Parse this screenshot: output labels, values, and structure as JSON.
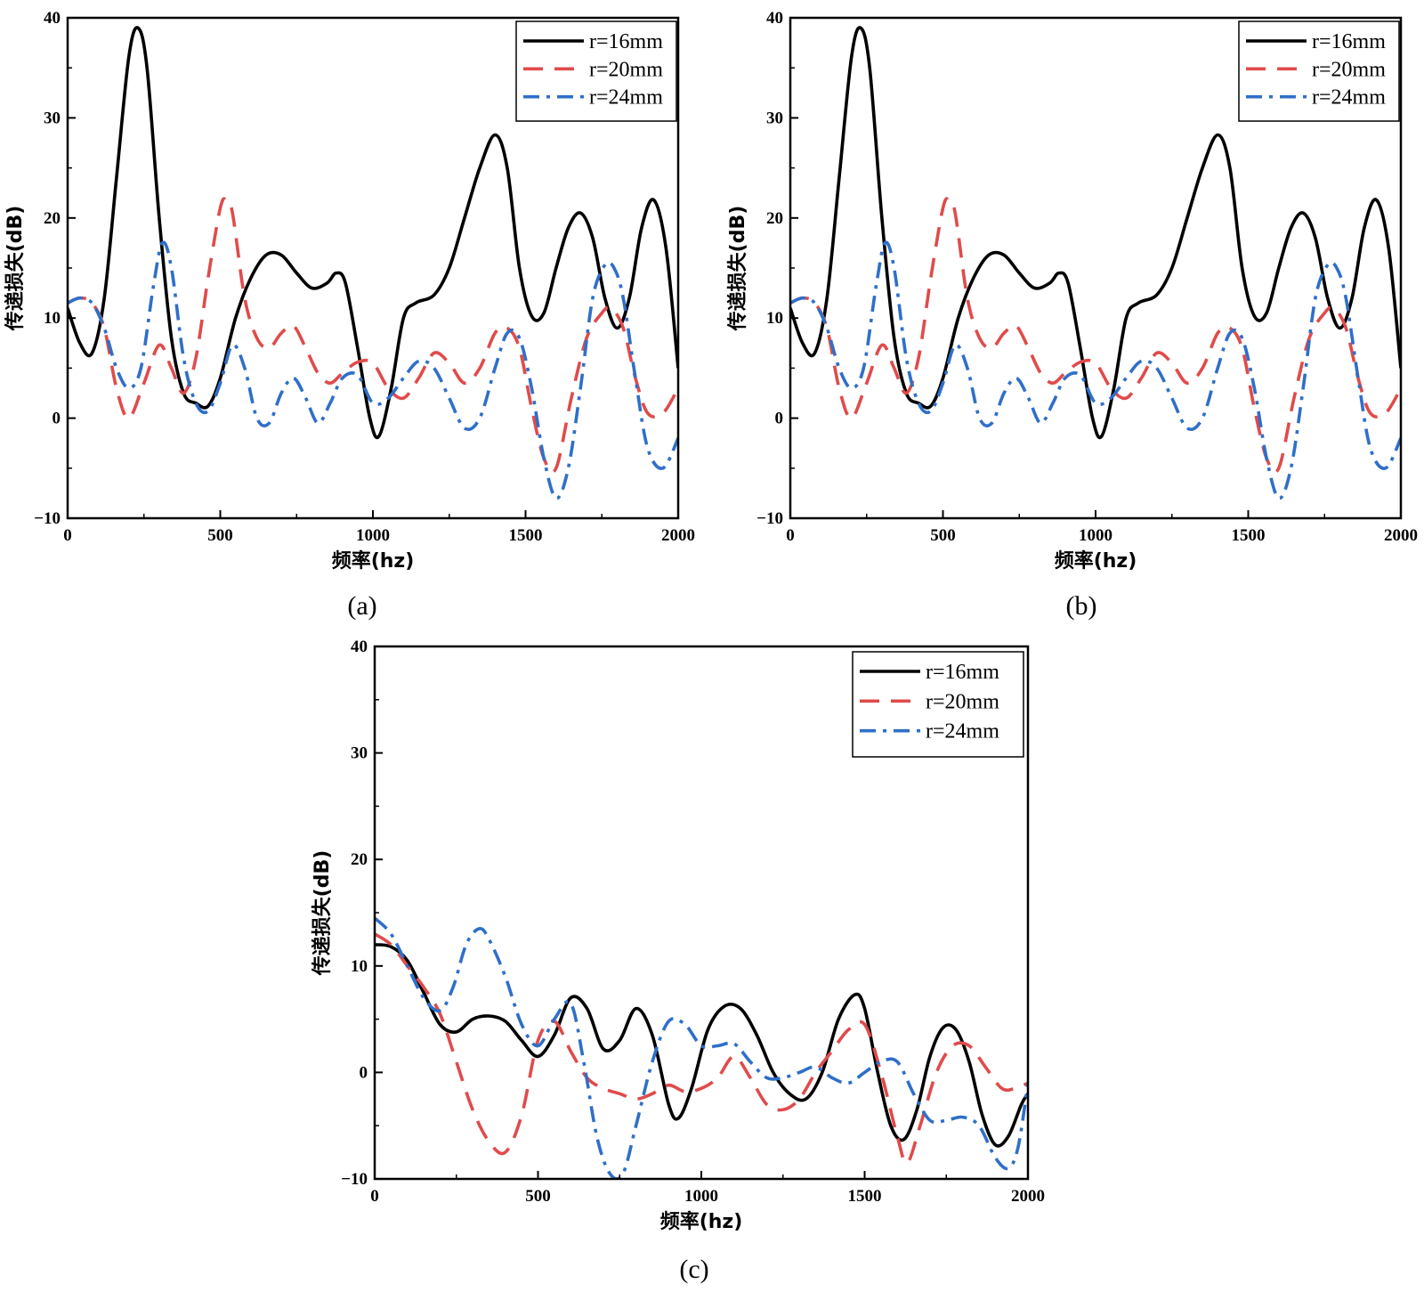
{
  "figure": {
    "panels": [
      {
        "label": "(a)",
        "legend": [
          "r=16mm",
          "r=20mm",
          "r=24mm"
        ]
      },
      {
        "label": "(b)",
        "legend": [
          "r=16mm",
          "r=20mm",
          "r=24mm"
        ]
      },
      {
        "label": "(c)",
        "legend": [
          "r=16mm",
          "r=20mm",
          "r=24mm"
        ]
      }
    ]
  },
  "chart_data": [
    {
      "type": "line",
      "panel": "(a)",
      "xlabel": "频率(hz)",
      "ylabel": "传递损失(dB)",
      "xlim": [
        0,
        2000
      ],
      "ylim": [
        -10,
        40
      ],
      "xticks": [
        0,
        500,
        1000,
        1500,
        2000
      ],
      "yticks": [
        -10,
        0,
        10,
        20,
        30,
        40
      ],
      "legend_position": "top-right",
      "series": [
        {
          "name": "r=16mm",
          "color": "#000000",
          "style": "solid",
          "x": [
            0,
            40,
            80,
            120,
            160,
            200,
            230,
            260,
            300,
            340,
            380,
            420,
            460,
            500,
            550,
            600,
            650,
            700,
            750,
            800,
            850,
            880,
            910,
            950,
            990,
            1020,
            1060,
            1100,
            1140,
            1200,
            1250,
            1300,
            1350,
            1400,
            1440,
            1480,
            1520,
            1560,
            1600,
            1640,
            1680,
            1720,
            1760,
            1800,
            1840,
            1880,
            1920,
            1960,
            2000
          ],
          "y": [
            11,
            7.5,
            6.5,
            12,
            24,
            36,
            39,
            35,
            20,
            8,
            2.5,
            1.5,
            1.2,
            4,
            10,
            14,
            16.3,
            16.3,
            14.5,
            13,
            13.5,
            14.5,
            13.5,
            7,
            0,
            -1.8,
            3,
            10,
            11.5,
            12.3,
            15,
            20,
            25,
            28.3,
            25,
            15,
            10.2,
            10.5,
            15,
            19,
            20.5,
            18,
            12,
            9,
            12,
            19,
            21.8,
            17,
            5
          ]
        },
        {
          "name": "r=20mm",
          "color": "#e04b4b",
          "style": "dashed",
          "x": [
            0,
            40,
            80,
            120,
            160,
            200,
            250,
            300,
            340,
            380,
            420,
            460,
            500,
            520,
            540,
            580,
            620,
            660,
            700,
            740,
            780,
            820,
            860,
            900,
            950,
            1000,
            1050,
            1100,
            1150,
            1200,
            1250,
            1300,
            1350,
            1400,
            1440,
            1480,
            1520,
            1560,
            1600,
            1650,
            1700,
            1750,
            1780,
            1820,
            1860,
            1900,
            1950,
            2000
          ],
          "y": [
            11.5,
            12,
            11.5,
            9,
            3,
            0,
            3.5,
            7.3,
            5,
            2.5,
            6,
            14,
            21,
            21.8,
            20.5,
            12,
            8,
            7,
            8.5,
            9.2,
            7,
            4.5,
            3.5,
            4.5,
            5.6,
            5.5,
            3,
            2,
            4,
            6.5,
            5.5,
            3.5,
            5,
            8.5,
            9,
            7,
            1,
            -4,
            -5,
            2,
            8,
            10.5,
            11,
            9,
            4,
            0.5,
            0.5,
            3
          ]
        },
        {
          "name": "r=24mm",
          "color": "#2f6fc9",
          "style": "dashdot",
          "x": [
            0,
            40,
            80,
            120,
            160,
            200,
            240,
            280,
            310,
            340,
            380,
            420,
            460,
            500,
            540,
            580,
            620,
            660,
            700,
            740,
            780,
            820,
            860,
            900,
            950,
            1000,
            1050,
            1100,
            1150,
            1200,
            1250,
            1300,
            1350,
            1400,
            1440,
            1480,
            1520,
            1560,
            1600,
            1640,
            1680,
            1720,
            1760,
            1790,
            1820,
            1860,
            1900,
            1950,
            2000
          ],
          "y": [
            11.5,
            12,
            11.5,
            9,
            5,
            3,
            5,
            13,
            17.5,
            15,
            6,
            1.5,
            0.7,
            3.5,
            7.3,
            5,
            0,
            -0.5,
            2.5,
            4,
            2,
            -0.5,
            1.5,
            4,
            4.3,
            1.5,
            2,
            4,
            5.7,
            5,
            2,
            -1,
            0,
            5,
            8.5,
            8,
            3,
            -4,
            -8,
            -5,
            3,
            12,
            15.3,
            15,
            12,
            4,
            -3,
            -5,
            -2
          ]
        }
      ]
    },
    {
      "type": "line",
      "panel": "(b)",
      "xlabel": "频率(hz)",
      "ylabel": "传递损失(dB)",
      "xlim": [
        0,
        2000
      ],
      "ylim": [
        -10,
        40
      ],
      "xticks": [
        0,
        500,
        1000,
        1500,
        2000
      ],
      "yticks": [
        -10,
        0,
        10,
        20,
        30,
        40
      ],
      "legend_position": "top-right",
      "series": [
        {
          "name": "r=16mm",
          "color": "#000000",
          "style": "solid",
          "x": [
            0,
            40,
            80,
            120,
            160,
            200,
            230,
            260,
            300,
            340,
            380,
            420,
            460,
            500,
            550,
            600,
            650,
            700,
            750,
            800,
            850,
            880,
            910,
            950,
            990,
            1020,
            1060,
            1100,
            1140,
            1200,
            1250,
            1300,
            1350,
            1400,
            1440,
            1480,
            1520,
            1560,
            1600,
            1640,
            1680,
            1720,
            1760,
            1800,
            1840,
            1880,
            1920,
            1960,
            2000
          ],
          "y": [
            11,
            7.5,
            6.5,
            12,
            24,
            36,
            39,
            35,
            20,
            8,
            2.5,
            1.5,
            1.2,
            4,
            10,
            14,
            16.3,
            16.3,
            14.5,
            13,
            13.5,
            14.5,
            13.5,
            7,
            0,
            -1.8,
            3,
            10,
            11.5,
            12.3,
            15,
            20,
            25,
            28.3,
            25,
            15,
            10.2,
            10.5,
            15,
            19,
            20.5,
            18,
            12,
            9,
            12,
            19,
            21.8,
            17,
            5
          ]
        },
        {
          "name": "r=20mm",
          "color": "#e04b4b",
          "style": "dashed",
          "x": [
            0,
            40,
            80,
            120,
            160,
            200,
            250,
            300,
            340,
            380,
            420,
            460,
            500,
            520,
            540,
            580,
            620,
            660,
            700,
            740,
            780,
            820,
            860,
            900,
            950,
            1000,
            1050,
            1100,
            1150,
            1200,
            1250,
            1300,
            1350,
            1400,
            1440,
            1480,
            1520,
            1560,
            1600,
            1650,
            1700,
            1750,
            1780,
            1820,
            1860,
            1900,
            1950,
            2000
          ],
          "y": [
            11.5,
            12,
            11.5,
            9,
            3,
            0,
            3.5,
            7.3,
            5,
            2.5,
            6,
            14,
            21,
            21.8,
            20.5,
            12,
            8,
            7,
            8.5,
            9.2,
            7,
            4.5,
            3.5,
            4.5,
            5.6,
            5.5,
            3,
            2,
            4,
            6.5,
            5.5,
            3.5,
            5,
            8.5,
            9,
            7,
            1,
            -4,
            -5,
            2,
            8,
            10.5,
            11,
            9,
            4,
            0.5,
            0.5,
            3
          ]
        },
        {
          "name": "r=24mm",
          "color": "#2f6fc9",
          "style": "dashdot",
          "x": [
            0,
            40,
            80,
            120,
            160,
            200,
            240,
            280,
            310,
            340,
            380,
            420,
            460,
            500,
            540,
            580,
            620,
            660,
            700,
            740,
            780,
            820,
            860,
            900,
            950,
            1000,
            1050,
            1100,
            1150,
            1200,
            1250,
            1300,
            1350,
            1400,
            1440,
            1480,
            1520,
            1560,
            1600,
            1640,
            1680,
            1720,
            1760,
            1790,
            1820,
            1860,
            1900,
            1950,
            2000
          ],
          "y": [
            11.5,
            12,
            11.5,
            9,
            5,
            3,
            5,
            13,
            17.5,
            15,
            6,
            1.5,
            0.7,
            3.5,
            7.3,
            5,
            0,
            -0.5,
            2.5,
            4,
            2,
            -0.5,
            1.5,
            4,
            4.3,
            1.5,
            2,
            4,
            5.7,
            5,
            2,
            -1,
            0,
            5,
            8.5,
            8,
            3,
            -4,
            -8,
            -5,
            3,
            12,
            15.3,
            15,
            12,
            4,
            -3,
            -5,
            -2
          ]
        }
      ]
    },
    {
      "type": "line",
      "panel": "(c)",
      "xlabel": "频率(hz)",
      "ylabel": "传递损失(dB)",
      "xlim": [
        0,
        2000
      ],
      "ylim": [
        -10,
        40
      ],
      "xticks": [
        0,
        500,
        1000,
        1500,
        2000
      ],
      "yticks": [
        -10,
        0,
        10,
        20,
        30,
        40
      ],
      "legend_position": "top-right",
      "series": [
        {
          "name": "r=16mm",
          "color": "#000000",
          "style": "solid",
          "x": [
            0,
            50,
            100,
            150,
            200,
            250,
            300,
            350,
            400,
            450,
            500,
            550,
            600,
            650,
            700,
            750,
            800,
            850,
            900,
            930,
            970,
            1020,
            1070,
            1120,
            1170,
            1220,
            1270,
            1320,
            1370,
            1420,
            1470,
            1500,
            1540,
            1580,
            1620,
            1660,
            1700,
            1740,
            1780,
            1820,
            1860,
            1900,
            1940,
            1980,
            2000
          ],
          "y": [
            12,
            11.8,
            10.5,
            7.5,
            4.5,
            3.8,
            5,
            5.3,
            4.8,
            3,
            1.5,
            3.5,
            7,
            6,
            2.2,
            3,
            6,
            3.5,
            -3,
            -4.3,
            -1.5,
            4,
            6.2,
            6,
            3.5,
            0,
            -2,
            -2.5,
            0,
            5,
            7.3,
            6,
            0,
            -5,
            -6.3,
            -3.5,
            1.5,
            4.2,
            4,
            1,
            -4,
            -6.8,
            -6,
            -3,
            -2
          ]
        },
        {
          "name": "r=20mm",
          "color": "#e04b4b",
          "style": "dashed",
          "x": [
            0,
            50,
            100,
            150,
            200,
            250,
            300,
            350,
            400,
            450,
            500,
            550,
            600,
            650,
            700,
            750,
            800,
            850,
            900,
            950,
            1000,
            1050,
            1100,
            1150,
            1200,
            1250,
            1300,
            1350,
            1400,
            1450,
            1500,
            1550,
            1600,
            1630,
            1670,
            1720,
            1770,
            1820,
            1870,
            1920,
            1960,
            2000
          ],
          "y": [
            13,
            12,
            10,
            8,
            5.5,
            1,
            -3.5,
            -6.5,
            -7.5,
            -4,
            3,
            4.8,
            2,
            -0.5,
            -1.5,
            -2,
            -2.5,
            -2,
            -1.2,
            -1.8,
            -1.5,
            -0.5,
            1.5,
            -0.5,
            -3,
            -3.5,
            -2.5,
            0,
            2,
            4,
            4.5,
            0,
            -6,
            -8.5,
            -5,
            0,
            2.5,
            2.5,
            0.5,
            -1.5,
            -1.5,
            -1
          ]
        },
        {
          "name": "r=24mm",
          "color": "#2f6fc9",
          "style": "dashdot",
          "x": [
            0,
            50,
            100,
            150,
            200,
            240,
            280,
            320,
            350,
            400,
            450,
            500,
            550,
            600,
            640,
            680,
            720,
            760,
            800,
            850,
            900,
            950,
            1000,
            1050,
            1100,
            1150,
            1200,
            1250,
            1300,
            1350,
            1400,
            1450,
            1500,
            1550,
            1600,
            1650,
            1700,
            1750,
            1800,
            1850,
            1900,
            1940,
            1970,
            2000
          ],
          "y": [
            14.5,
            13,
            10,
            7,
            5.8,
            8,
            12,
            13.5,
            12.5,
            9,
            4.5,
            2.5,
            5,
            6.5,
            1,
            -6,
            -9.5,
            -9.5,
            -5,
            1,
            4.8,
            4.5,
            2.5,
            2.5,
            2.7,
            1,
            -0.5,
            -0.5,
            0,
            0.5,
            -0.5,
            -1,
            0,
            1,
            1,
            -2,
            -4.5,
            -4.5,
            -4.2,
            -5,
            -8,
            -9,
            -7,
            -1
          ]
        }
      ]
    }
  ]
}
